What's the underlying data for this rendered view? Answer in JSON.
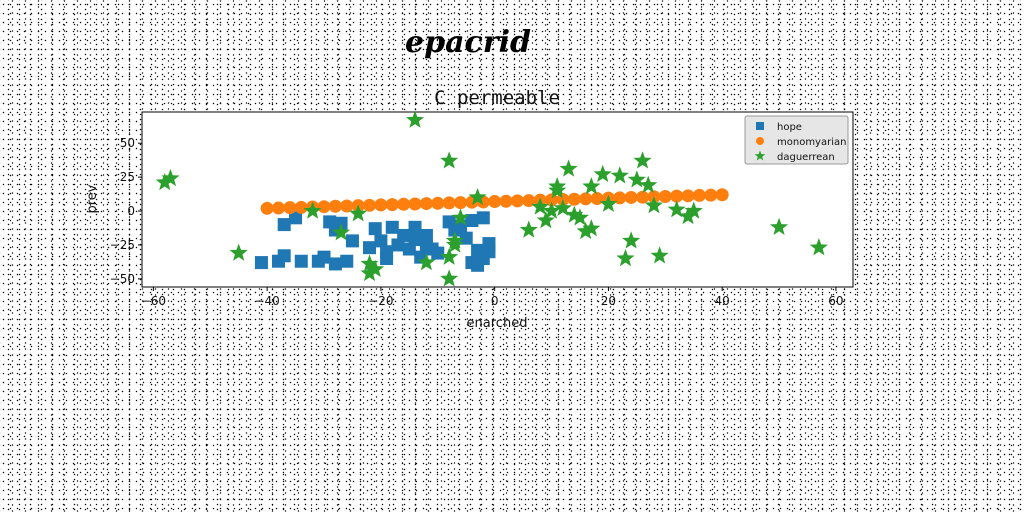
{
  "chart_data": {
    "type": "scatter",
    "suptitle": "epacrid",
    "title": "C permeable",
    "xlabel": "enarched",
    "ylabel": "prev",
    "xlim": [
      -62,
      63
    ],
    "ylim": [
      -56,
      73
    ],
    "xticks": [
      -60,
      -40,
      -20,
      0,
      20,
      40,
      60
    ],
    "yticks": [
      -50,
      -25,
      0,
      25,
      50
    ],
    "grid": false,
    "legend_position": "top-right",
    "series": [
      {
        "name": "hope",
        "marker": "square",
        "color": "#1f77b4",
        "points": [
          [
            -41,
            -38
          ],
          [
            -38,
            -37
          ],
          [
            -37,
            -33
          ],
          [
            -37,
            -10
          ],
          [
            -35,
            -5
          ],
          [
            -34,
            -37
          ],
          [
            -31,
            -37
          ],
          [
            -30,
            -34
          ],
          [
            -29,
            -8
          ],
          [
            -28,
            -14
          ],
          [
            -28,
            -39
          ],
          [
            -27,
            -9
          ],
          [
            -26,
            -37
          ],
          [
            -25,
            -22
          ],
          [
            -22,
            -27
          ],
          [
            -21,
            -13
          ],
          [
            -20,
            -22
          ],
          [
            -19,
            -30
          ],
          [
            -19,
            -35
          ],
          [
            -18,
            -12
          ],
          [
            -17,
            -25
          ],
          [
            -16,
            -18
          ],
          [
            -15,
            -28
          ],
          [
            -14,
            -21
          ],
          [
            -14,
            -12
          ],
          [
            -13,
            -34
          ],
          [
            -12,
            -26
          ],
          [
            -12,
            -18
          ],
          [
            -11,
            -28
          ],
          [
            -10,
            -31
          ],
          [
            -8,
            -8
          ],
          [
            -7,
            -14
          ],
          [
            -6,
            -11
          ],
          [
            -5,
            -20
          ],
          [
            -4,
            -7
          ],
          [
            -4,
            -38
          ],
          [
            -3,
            -40
          ],
          [
            -3,
            -29
          ],
          [
            -2,
            -5
          ],
          [
            -2,
            -35
          ],
          [
            -1,
            -30
          ],
          [
            -1,
            -24
          ]
        ]
      },
      {
        "name": "monomyarian",
        "marker": "circle",
        "color": "#ff7f0e",
        "points": [
          [
            -40,
            2
          ],
          [
            -38,
            2.2
          ],
          [
            -36,
            2.5
          ],
          [
            -34,
            2.7
          ],
          [
            -32,
            3
          ],
          [
            -30,
            3.2
          ],
          [
            -28,
            3.5
          ],
          [
            -26,
            3.7
          ],
          [
            -24,
            4
          ],
          [
            -22,
            4.2
          ],
          [
            -20,
            4.5
          ],
          [
            -18,
            4.7
          ],
          [
            -16,
            5
          ],
          [
            -14,
            5.2
          ],
          [
            -12,
            5.5
          ],
          [
            -10,
            5.7
          ],
          [
            -8,
            6
          ],
          [
            -6,
            6.2
          ],
          [
            -4,
            6.5
          ],
          [
            -2,
            6.7
          ],
          [
            0,
            7
          ],
          [
            2,
            7.2
          ],
          [
            4,
            7.5
          ],
          [
            6,
            7.7
          ],
          [
            8,
            8
          ],
          [
            10,
            8.2
          ],
          [
            12,
            8.5
          ],
          [
            14,
            8.7
          ],
          [
            16,
            9
          ],
          [
            18,
            9.2
          ],
          [
            20,
            9.5
          ],
          [
            22,
            9.7
          ],
          [
            24,
            10
          ],
          [
            26,
            10.2
          ],
          [
            28,
            10.5
          ],
          [
            30,
            10.7
          ],
          [
            32,
            11
          ],
          [
            34,
            11.2
          ],
          [
            36,
            11.5
          ],
          [
            38,
            11.7
          ],
          [
            40,
            12
          ]
        ]
      },
      {
        "name": "daguerrean",
        "marker": "star",
        "color": "#2ca02c",
        "points": [
          [
            -58,
            21
          ],
          [
            -57,
            24
          ],
          [
            -45,
            -31
          ],
          [
            -32,
            0
          ],
          [
            -27,
            -16
          ],
          [
            -24,
            -2
          ],
          [
            -22,
            -39
          ],
          [
            -22,
            -46
          ],
          [
            -21,
            -43
          ],
          [
            -14,
            67
          ],
          [
            -12,
            -38
          ],
          [
            -8,
            37
          ],
          [
            -8,
            -50
          ],
          [
            -8,
            -34
          ],
          [
            -7,
            -25
          ],
          [
            -7,
            -22
          ],
          [
            -6,
            -5
          ],
          [
            -3,
            10
          ],
          [
            6,
            -14
          ],
          [
            8,
            3
          ],
          [
            9,
            -7
          ],
          [
            10,
            0
          ],
          [
            11,
            18
          ],
          [
            11,
            15
          ],
          [
            12,
            2
          ],
          [
            13,
            31
          ],
          [
            14,
            -3
          ],
          [
            15,
            -5
          ],
          [
            16,
            -15
          ],
          [
            17,
            18
          ],
          [
            17,
            -13
          ],
          [
            19,
            27
          ],
          [
            20,
            5
          ],
          [
            22,
            26
          ],
          [
            23,
            -35
          ],
          [
            24,
            -22
          ],
          [
            25,
            23
          ],
          [
            26,
            37
          ],
          [
            27,
            19
          ],
          [
            28,
            4
          ],
          [
            29,
            -33
          ],
          [
            32,
            1
          ],
          [
            34,
            -4
          ],
          [
            35,
            0
          ],
          [
            50,
            -12
          ],
          [
            57,
            -27
          ]
        ]
      }
    ]
  }
}
